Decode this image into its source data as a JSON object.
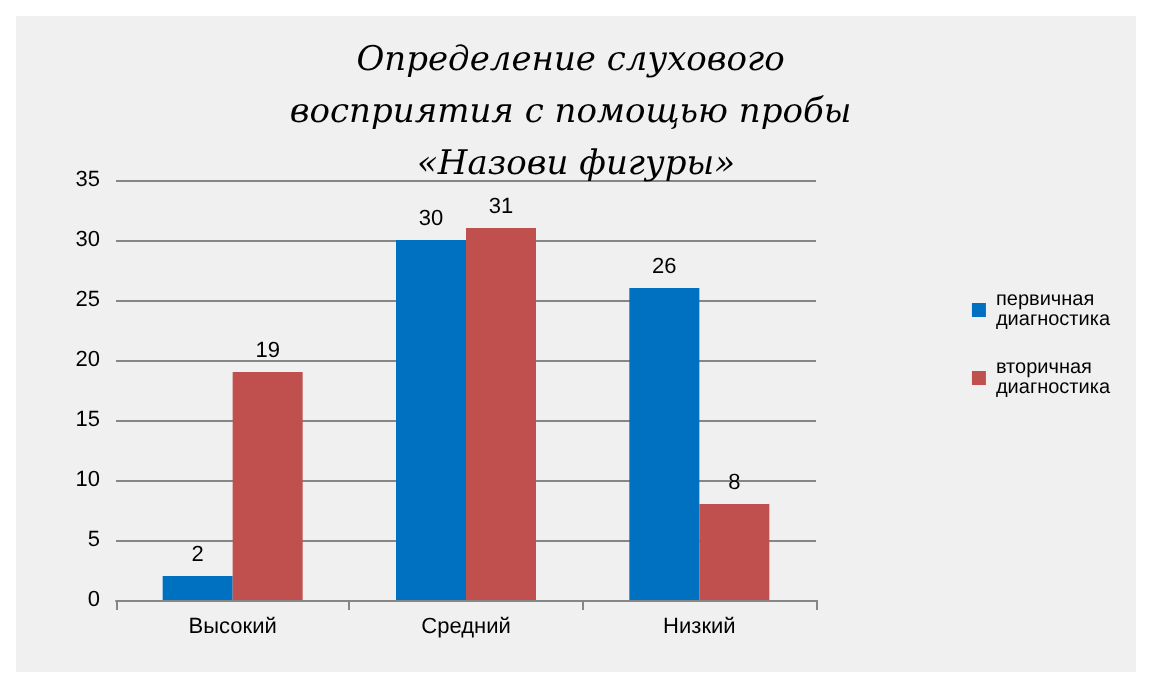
{
  "chart_data": {
    "type": "bar",
    "title": "Определение слухового восприятия с помощью пробы «Назови фигуры»",
    "categories": [
      "Высокий",
      "Средний",
      "Низкий"
    ],
    "series": [
      {
        "name": "первичная диагностика",
        "color": "#0070c0",
        "values": [
          2,
          30,
          26
        ]
      },
      {
        "name": "вторичная диагностика",
        "color": "#c0504d",
        "values": [
          19,
          31,
          8
        ]
      }
    ],
    "ylim": [
      0,
      35
    ],
    "yticks": [
      0,
      5,
      10,
      15,
      20,
      25,
      30,
      35
    ],
    "grid": "y",
    "legend": "right",
    "data_labels": true
  }
}
